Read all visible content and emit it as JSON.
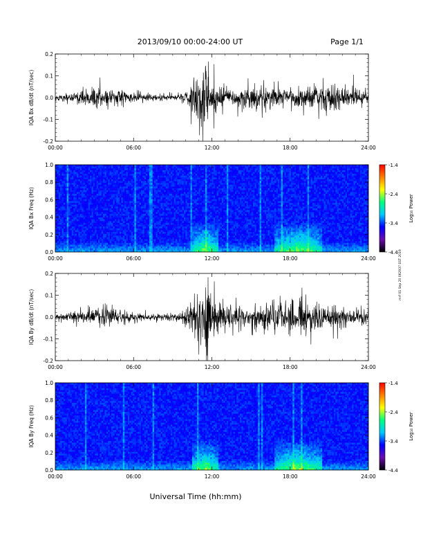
{
  "header": {
    "title": "2013/09/10  00:00-24:00 UT",
    "page": "Page 1/1"
  },
  "footer": {
    "xlabel": "Universal Time (hh:mm)"
  },
  "side_note": "mrf 01 Sep 20 062937 EST 2019",
  "colorbar": {
    "label": "Log₁₀ Power",
    "ticks": [
      "-1.4",
      "-2.4",
      "-3.4",
      "-4.4"
    ],
    "colors": [
      "#000000",
      "#6a0dad",
      "#0000ff",
      "#00c8ff",
      "#00ff80",
      "#ffff00",
      "#ff8000",
      "#ff0000"
    ]
  },
  "chart_data": [
    {
      "type": "line",
      "title": "",
      "ylabel": "IQA Bx dB/dt (nT/sec)",
      "xlabel": "",
      "xlim": [
        "00:00",
        "24:00"
      ],
      "ylim": [
        -0.2,
        0.2
      ],
      "xticks": [
        "00:00",
        "06:00",
        "12:00",
        "18:00",
        "24:00"
      ],
      "yticks": [
        "0.2",
        "0.1",
        "0.0",
        "-0.1",
        "-0.2"
      ],
      "envelope_hours": [
        0,
        1,
        2,
        3,
        4,
        5,
        6,
        7,
        8,
        9,
        10,
        10.5,
        11,
        11.3,
        11.6,
        12,
        13,
        14,
        15,
        16,
        17,
        18,
        19,
        20,
        21,
        22,
        23,
        24
      ],
      "envelope_amplitude": [
        0.02,
        0.025,
        0.03,
        0.06,
        0.05,
        0.035,
        0.025,
        0.02,
        0.02,
        0.02,
        0.03,
        0.09,
        0.2,
        0.2,
        0.2,
        0.1,
        0.07,
        0.06,
        0.07,
        0.07,
        0.06,
        0.06,
        0.06,
        0.08,
        0.08,
        0.06,
        0.05,
        0.04
      ]
    },
    {
      "type": "heatmap",
      "title": "",
      "ylabel": "IQA Bx Freq (Hz)",
      "xlabel": "",
      "xlim": [
        "00:00",
        "24:00"
      ],
      "ylim": [
        0.0,
        1.0
      ],
      "xticks": [
        "00:00",
        "06:00",
        "12:00",
        "18:00",
        "24:00"
      ],
      "yticks": [
        "1.0",
        "0.8",
        "0.6",
        "0.4",
        "0.2",
        "0.0"
      ],
      "colorbar_range": [
        -4.4,
        -1.4
      ],
      "enhanced_power_hours": [
        [
          10.5,
          12.5
        ],
        [
          16.8,
          20.5
        ]
      ],
      "enhanced_power_freq_max_hz": 0.35
    },
    {
      "type": "line",
      "title": "",
      "ylabel": "IQA By dB/dt (nT/sec)",
      "xlabel": "",
      "xlim": [
        "00:00",
        "24:00"
      ],
      "ylim": [
        -0.2,
        0.2
      ],
      "xticks": [
        "00:00",
        "06:00",
        "12:00",
        "18:00",
        "24:00"
      ],
      "yticks": [
        "0.2",
        "0.1",
        "0.0",
        "-0.1",
        "-0.2"
      ],
      "envelope_hours": [
        0,
        1,
        2,
        3,
        4,
        5,
        6,
        7,
        8,
        9,
        10,
        10.5,
        11,
        11.3,
        11.6,
        12,
        13,
        14,
        15,
        16,
        17,
        18,
        19,
        20,
        21,
        22,
        23,
        24
      ],
      "envelope_amplitude": [
        0.02,
        0.025,
        0.04,
        0.05,
        0.06,
        0.04,
        0.03,
        0.025,
        0.02,
        0.025,
        0.04,
        0.1,
        0.2,
        0.2,
        0.2,
        0.12,
        0.07,
        0.06,
        0.06,
        0.08,
        0.09,
        0.1,
        0.1,
        0.08,
        0.07,
        0.06,
        0.05,
        0.04
      ]
    },
    {
      "type": "heatmap",
      "title": "",
      "ylabel": "IQA By Freq (Hz)",
      "xlabel": "",
      "xlim": [
        "00:00",
        "24:00"
      ],
      "ylim": [
        0.0,
        1.0
      ],
      "xticks": [
        "00:00",
        "06:00",
        "12:00",
        "18:00",
        "24:00"
      ],
      "yticks": [
        "1.0",
        "0.8",
        "0.6",
        "0.4",
        "0.2",
        "0.0"
      ],
      "colorbar_range": [
        -4.4,
        -1.4
      ],
      "enhanced_power_hours": [
        [
          10.5,
          12.5
        ],
        [
          16.8,
          20.5
        ]
      ],
      "enhanced_power_freq_max_hz": 0.35
    }
  ]
}
